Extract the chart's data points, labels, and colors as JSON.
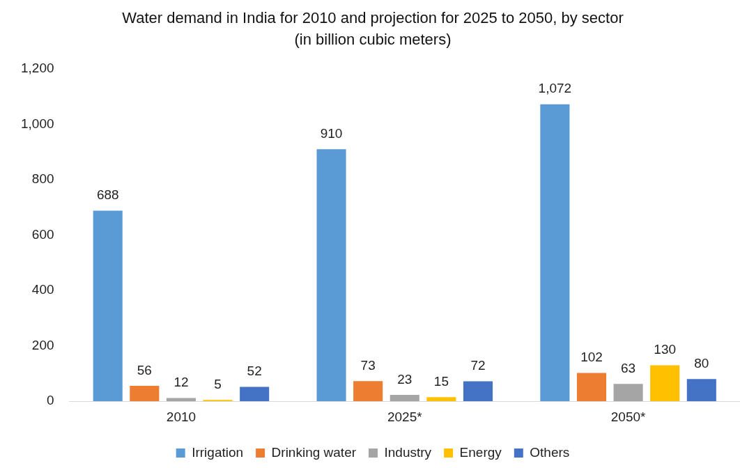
{
  "chart_data": {
    "type": "bar",
    "title": "Water demand in India for 2010 and projection for 2025 to 2050, by sector",
    "subtitle": "(in billion cubic meters)",
    "categories": [
      "2010",
      "2025*",
      "2050*"
    ],
    "series": [
      {
        "name": "Irrigation",
        "color": "#5b9bd5",
        "values": [
          688,
          910,
          1072
        ],
        "value_labels": [
          "688",
          "910",
          "1,072"
        ]
      },
      {
        "name": "Drinking water",
        "color": "#ed7d31",
        "values": [
          56,
          73,
          102
        ]
      },
      {
        "name": "Industry",
        "color": "#a5a5a5",
        "values": [
          12,
          23,
          63
        ]
      },
      {
        "name": "Energy",
        "color": "#ffc000",
        "values": [
          5,
          15,
          130
        ]
      },
      {
        "name": "Others",
        "color": "#4472c4",
        "values": [
          52,
          72,
          80
        ]
      }
    ],
    "ylim": [
      0,
      1200
    ],
    "yticks": [
      0,
      200,
      400,
      600,
      800,
      {
        "value": 1000,
        "label": "1,000"
      },
      {
        "value": 1200,
        "label": "1,200"
      }
    ],
    "grid": false,
    "legend": "bottom",
    "data_labels": true
  }
}
